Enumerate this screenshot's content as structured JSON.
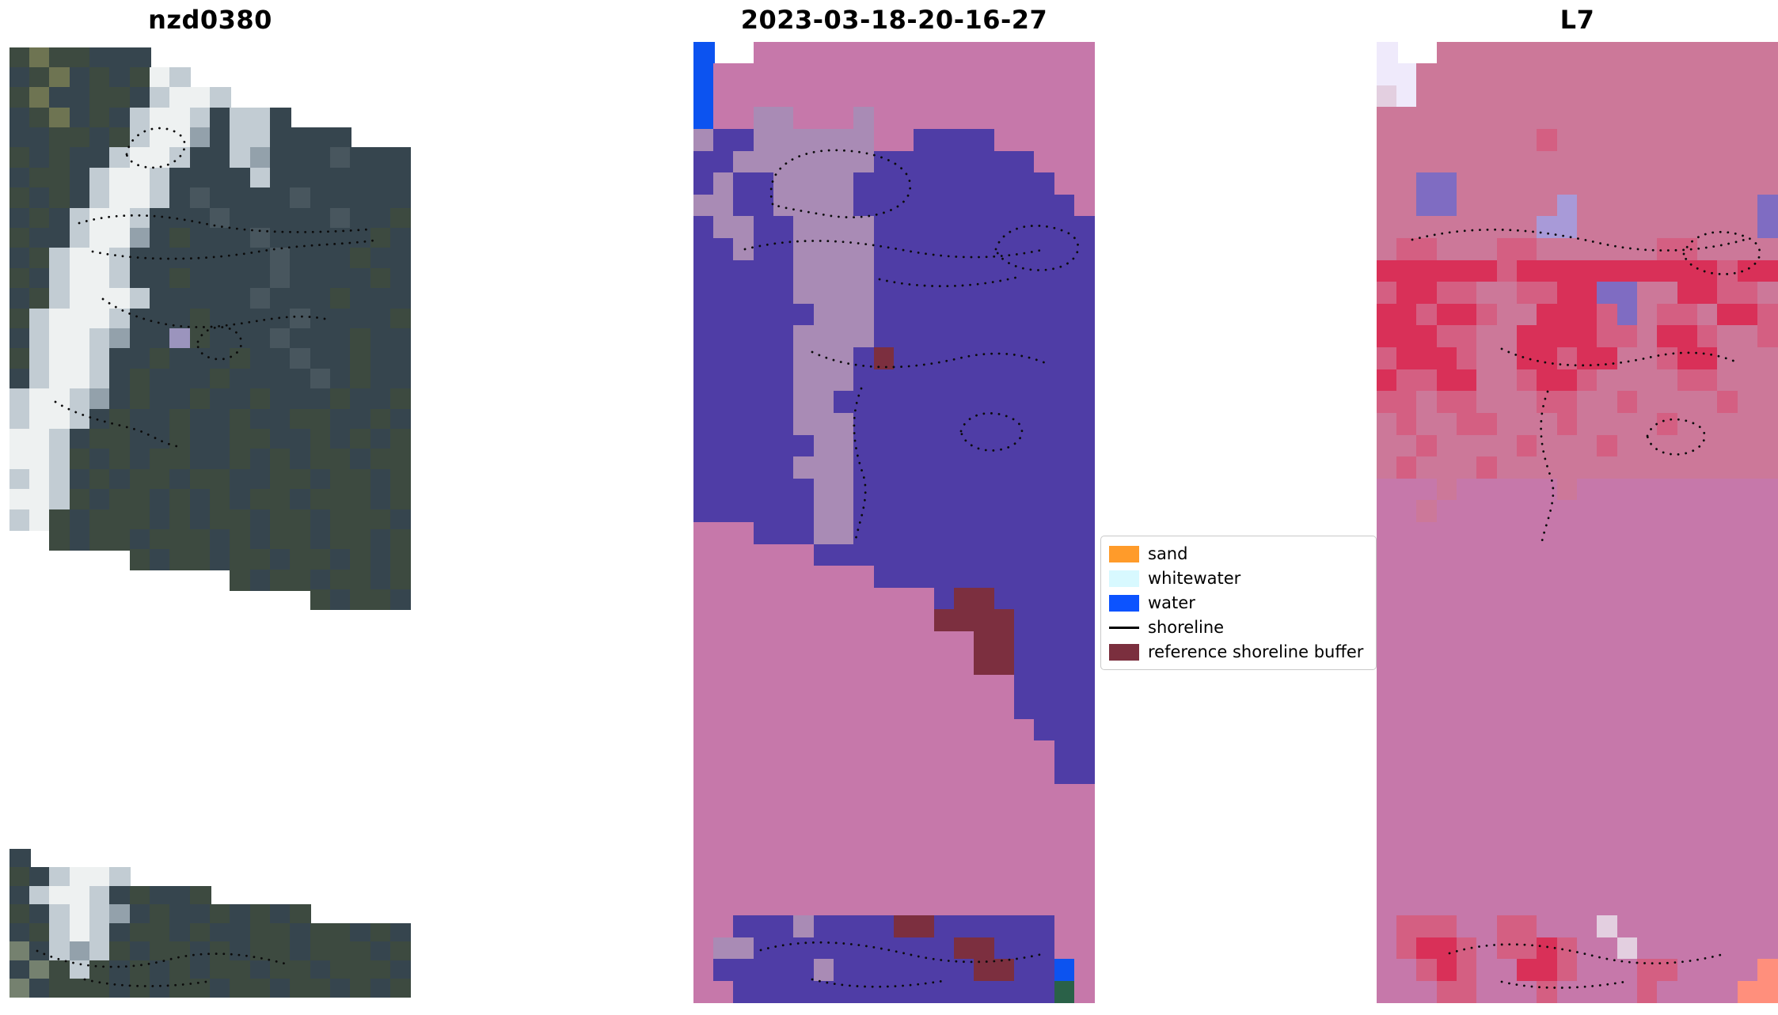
{
  "panels": {
    "left_main": {
      "title": "nzd0380",
      "palette": {
        "a": "#36454e",
        "b": "#3d4a40",
        "c": "#48565e",
        "g": "#75816f",
        "y": "#6e7452",
        "w": "#eef1f1",
        "l": "#c2ccd3",
        "m": "#93a1ab",
        "u": "#9b94bd"
      },
      "grid": [
        "bybbaaa.............",
        "abyababwl...........",
        "byaabbalwwl.........",
        "abyabalwwlalla......",
        "aabbablwwmallaaaa...",
        "babaalwwlaalmaaacaaa",
        "abbalwwlaaaalaaaaaaa",
        "babalwwlacaaaacaaaaa",
        "abalwwlaaacaaaaacaab",
        "baalwwmabaaacaaaaaba",
        "ablwwlaaaaaaacaaabaa",
        "balwwlaabaaaacaaaaba",
        "ablwwwlaaaaacaaabaaa",
        "blwwwlaaabaaaacaaaab",
        "alwwlmaaubaaacaaabaa",
        "blwwlaabaaabaacaabaa",
        "alwwlabaaabaaaacabaa",
        "lwwlmabaabaabaaabaab",
        "lwwlabaabaabaabbaaba",
        "wwlabbaabaabbaababab",
        "wwlbababbaabababbabb",
        "lwlababbabbaabbabbab",
        "wwlbabbabababbabbbab",
        "lwbabbbababbabbabbba",
        "..babbabbbababbabbab",
        "......babbabbabbabab",
        "...........babbabbab",
        "...............babba"
      ]
    },
    "left_strip": {
      "palette": {
        "a": "#36454e",
        "b": "#3d4a40",
        "c": "#48565e",
        "g": "#75816f",
        "y": "#6e7452",
        "w": "#eef1f1",
        "l": "#c2ccd3",
        "m": "#93a1ab"
      },
      "grid": [
        "a...................",
        "balwwl..............",
        "alwwlabaab..........",
        "balwlmabaababab.....",
        "ablwlabbabaabbabbaba",
        "galmlbabbababbabbbab",
        "agblbabababbabbabbba",
        "gabbbababbabbabbabab"
      ]
    },
    "middle": {
      "title": "2023-03-18-20-16-27",
      "palette": {
        "P": "#4f3da6",
        "m": "#a98bb5",
        "K": "#c678aa",
        "M": "#7c2f3f",
        "B": "#0c53f0",
        "G": "#2a6148"
      },
      "grid": [
        "B..KKKKKKKKKKKKKKKKK",
        "BKKKKKKKKKKKKKKKKKKK",
        "BKKKKKKKKKKKKKKKKKKK",
        "BKKmmKKKmKKKKKKKKKKK",
        "mPPmmmmmmKKPPPPKKKKK",
        "PPmmmmmmmPPPPPPPPKKK",
        "PmPPmmmmPPPPPPPPPPKK",
        "mmPPmmmmPPPPPPPPPPPK",
        "PmmPPmmmmPPPPPPPPPPP",
        "PPmPPmmmmPPPPPPPPPPP",
        "PPPPPmmmmPPPPPPPPPPP",
        "PPPPPmmmmPPPPPPPPPPP",
        "PPPPPPmmmPPPPPPPPPPP",
        "PPPPPmmmmPPPPPPPPPPP",
        "PPPPPmmmPMPPPPPPPPPP",
        "PPPPPmmmPPPPPPPPPPPP",
        "PPPPPmmPPPPPPPPPPPPP",
        "PPPPPmmmPPPPPPPPPPPP",
        "PPPPPPmmPPPPPPPPPPPP",
        "PPPPPmmmPPPPPPPPPPPP",
        "PPPPPPmmPPPPPPPPPPPP",
        "PPPPPPmmPPPPPPPPPPPP",
        "KKKPPPmmPPPPPPPPPPPP",
        "KKKKKKPPPPPPPPPPPPPP",
        "KKKKKKKKKPPPPPPPPPPP",
        "KKKKKKKKKKKKPMMPPPPP",
        "KKKKKKKKKKKKMMMMPPPP",
        "KKKKKKKKKKKKKKMMPPPP",
        "KKKKKKKKKKKKKKMMPPPP",
        "KKKKKKKKKKKKKKKKPPPP",
        "KKKKKKKKKKKKKKKKPPPP",
        "KKKKKKKKKKKKKKKKKPPP",
        "KKKKKKKKKKKKKKKKKKPP",
        "KKKKKKKKKKKKKKKKKKPP",
        "KKKKKKKKKKKKKKKKKKKK",
        "KKKKKKKKKKKKKKKKKKKK",
        "KKKKKKKKKKKKKKKKKKKK",
        "KKKKKKKKKKKKKKKKKKKK",
        "KKKKKKKKKKKKKKKKKKKK",
        "KKKKKKKKKKKKKKKKKKKK",
        "KKPPPmPPPPMMPPPPPPKK",
        "KmmPPPPPPPPPPMMPPPKK",
        "KPPPPPmPPPPPPPMMPPBK",
        "KKPPPPPPPPPPPPPPPPGK"
      ]
    },
    "right": {
      "title": "L7",
      "palette": {
        "k": "#cc7899",
        "K": "#c678aa",
        "R": "#d93058",
        "r": "#d45f82",
        "v": "#7f6cc2",
        "V": "#a89ad8",
        "L": "#efeafb",
        "e": "#e3cfe0",
        "s": "#ff8f7c"
      },
      "grid": [
        "L..kkkkkkkkkkkkkkkkk",
        "LLkkkkkkkkkkkkkkkkkk",
        "eLkkkkkkkkkkkkkkkkkk",
        "kkkkkkkkkkkkkkkkkkkk",
        "kkkkkkkkrkkkkkkkkkkk",
        "kkkkkkkkkkkkkkkkkkkk",
        "kkvvkkkkkkkkkkkkkkkk",
        "kkvvkkkkkVkkkkkkkkkv",
        "kkkkkkkkVVkkkkkkkkkv",
        "krrkkkrrkkkkkkrrkkkk",
        "RRRRRRrRRRRRRRRRRrRR",
        "rRRrrkkrrRRvvkkRRrrk",
        "RRrRRrkkRRRrvkrrkRRr",
        "RRRrrkkRRRRrrkRRrkkr",
        "rRRRrkkRRrRRkkrRRkkk",
        "RrrRRkkrRRrkkkkrrkkk",
        "rrkrrkkkrrkkrkkkkrkk",
        "krkkrrkkkrkkkkrkkkkk",
        "kkrkkkkrkkkrkkkkkkkk",
        "krkkkrkkkkkkkkkkkkkk",
        "KKKkKKKKKkKKKKKKKKKK",
        "KKkKKKKKKKKKKKKKKKKK",
        "KKKKKKKKKKKKKKKKKKKK",
        "KKKKKKKKKKKKKKKKKKKK",
        "KKKKKKKKKKKKKKKKKKKK",
        "KKKKKKKKKKKKKKKKKKKK",
        "KKKKKKKKKKKKKKKKKKKK",
        "KKKKKKKKKKKKKKKKKKKK",
        "KKKKKKKKKKKKKKKKKKKK",
        "KKKKKKKKKKKKKKKKKKKK",
        "KKKKKKKKKKKKKKKKKKKK",
        "KKKKKKKKKKKKKKKKKKKK",
        "KKKKKKKKKKKKKKKKKKKK",
        "KKKKKKKKKKKKKKKKKKKK",
        "KKKKKKKKKKKKKKKKKKKK",
        "KKKKKKKKKKKKKKKKKKKK",
        "KKKKKKKKKKKKKKKKKKKK",
        "KKKKKKKKKKKKKKKKKKKK",
        "KKKKKKKKKKKKKKKKKKKK",
        "KKKKKKKKKKKKKKKKKKKK",
        "KrrrKKrrKKKeKKKKKKKK",
        "KrRRrKrrRrKKeKKKKKKK",
        "KKrRrKKRRrKKKrrKKKKs",
        "KKKrrKKKrKKKKrKKKKss"
      ]
    }
  },
  "legend": {
    "items": [
      {
        "label": "sand",
        "color": "#ff9b2a",
        "type": "patch"
      },
      {
        "label": "whitewater",
        "color": "#d8f9ff",
        "type": "patch"
      },
      {
        "label": "water",
        "color": "#0c53ff",
        "type": "patch"
      },
      {
        "label": "shoreline",
        "color": "#000000",
        "type": "line"
      },
      {
        "label": "reference shoreline buffer",
        "color": "#7b2f3e",
        "type": "patch"
      }
    ]
  }
}
